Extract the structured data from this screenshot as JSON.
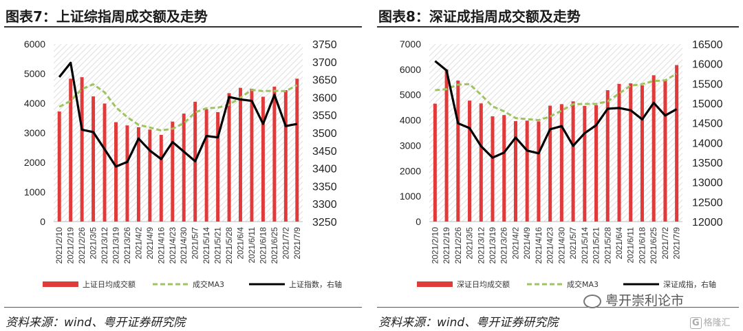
{
  "left": {
    "title": "图表7：上证综指周成交额及走势",
    "source": "资料来源：wind、粤开证券研究院"
  },
  "right": {
    "title": "图表8：深证成指周成交额及走势",
    "source": "资料来源：wind、粤开证券研究院"
  },
  "watermark": {
    "text": "粤开崇利论市",
    "icon": "wechat-icon"
  },
  "corner_logo": {
    "badge": "G",
    "text": "格隆汇"
  },
  "colors": {
    "bar": "#e03a3a",
    "ma3": "#9dc45f",
    "index": "#000000",
    "hatch": "#d6d6d6"
  },
  "chart_data": [
    {
      "type": "bar",
      "categories": [
        "2021/2/10",
        "2021/2/19",
        "2021/2/26",
        "2021/3/5",
        "2021/3/12",
        "2021/3/19",
        "2021/3/26",
        "2021/4/2",
        "2021/4/9",
        "2021/4/16",
        "2021/4/23",
        "2021/4/30",
        "2021/5/7",
        "2021/5/14",
        "2021/5/21",
        "2021/5/28",
        "2021/6/4",
        "2021/6/11",
        "2021/6/18",
        "2021/6/25",
        "2021/7/2",
        "2021/7/9"
      ],
      "series": [
        {
          "name": "上证日均成交额",
          "kind": "bar",
          "axis": "left",
          "values": [
            3720,
            4830,
            4880,
            4230,
            3990,
            3360,
            3250,
            3190,
            3110,
            2930,
            3380,
            3650,
            4050,
            3800,
            3700,
            4340,
            4520,
            4490,
            4220,
            4560,
            4440,
            4830
          ]
        },
        {
          "name": "成交MA3",
          "kind": "line-dashed",
          "axis": "left",
          "values": [
            3880,
            4080,
            4480,
            4640,
            4370,
            3860,
            3530,
            3270,
            3180,
            3080,
            3140,
            3320,
            3690,
            3830,
            3850,
            3950,
            4190,
            4450,
            4410,
            4420,
            4410,
            4610
          ]
        },
        {
          "name": "上证指数，右轴",
          "kind": "line",
          "axis": "right",
          "values": [
            3657,
            3697,
            3509,
            3502,
            3454,
            3405,
            3418,
            3484,
            3450,
            3426,
            3474,
            3447,
            3420,
            3491,
            3487,
            3601,
            3594,
            3590,
            3525,
            3607,
            3519,
            3525
          ]
        }
      ],
      "ylim": [
        0,
        6000
      ],
      "yticks": [
        0,
        1000,
        2000,
        3000,
        4000,
        5000,
        6000
      ],
      "ylim_right": [
        3250,
        3750
      ],
      "yticks_right": [
        3250,
        3300,
        3350,
        3400,
        3450,
        3500,
        3550,
        3600,
        3650,
        3700,
        3750
      ],
      "legend_position": "bottom"
    },
    {
      "type": "bar",
      "categories": [
        "2021/2/10",
        "2021/2/19",
        "2021/2/26",
        "2021/3/5",
        "2021/3/12",
        "2021/3/19",
        "2021/3/26",
        "2021/4/2",
        "2021/4/9",
        "2021/4/16",
        "2021/4/23",
        "2021/4/30",
        "2021/5/7",
        "2021/5/14",
        "2021/5/21",
        "2021/5/28",
        "2021/6/4",
        "2021/6/11",
        "2021/6/18",
        "2021/6/25",
        "2021/7/2",
        "2021/7/9"
      ],
      "series": [
        {
          "name": "深证日均成交额",
          "kind": "bar",
          "axis": "left",
          "values": [
            4650,
            6000,
            5560,
            4770,
            4660,
            4150,
            4200,
            3960,
            3980,
            3950,
            4570,
            4630,
            4740,
            4560,
            4590,
            5180,
            5430,
            5450,
            5370,
            5770,
            5560,
            6170
          ]
        },
        {
          "name": "成交MA3",
          "kind": "line-dashed",
          "axis": "left",
          "values": [
            5180,
            5220,
            5400,
            5420,
            5000,
            4540,
            4350,
            4080,
            4040,
            4000,
            4140,
            4380,
            4630,
            4640,
            4640,
            4740,
            5050,
            5360,
            5420,
            5540,
            5570,
            5830
          ]
        },
        {
          "name": "深证成指，右轴",
          "kind": "line",
          "axis": "right",
          "values": [
            16070,
            15830,
            14490,
            14370,
            13910,
            13620,
            13750,
            14130,
            13800,
            13730,
            14340,
            14420,
            13920,
            14240,
            14440,
            14860,
            14880,
            14820,
            14590,
            15010,
            14690,
            14850
          ]
        }
      ],
      "ylim": [
        0,
        7000
      ],
      "yticks": [
        0,
        1000,
        2000,
        3000,
        4000,
        5000,
        6000,
        7000
      ],
      "ylim_right": [
        12000,
        16500
      ],
      "yticks_right": [
        12000,
        12500,
        13000,
        13500,
        14000,
        14500,
        15000,
        15500,
        16000,
        16500
      ],
      "legend_position": "bottom"
    }
  ]
}
